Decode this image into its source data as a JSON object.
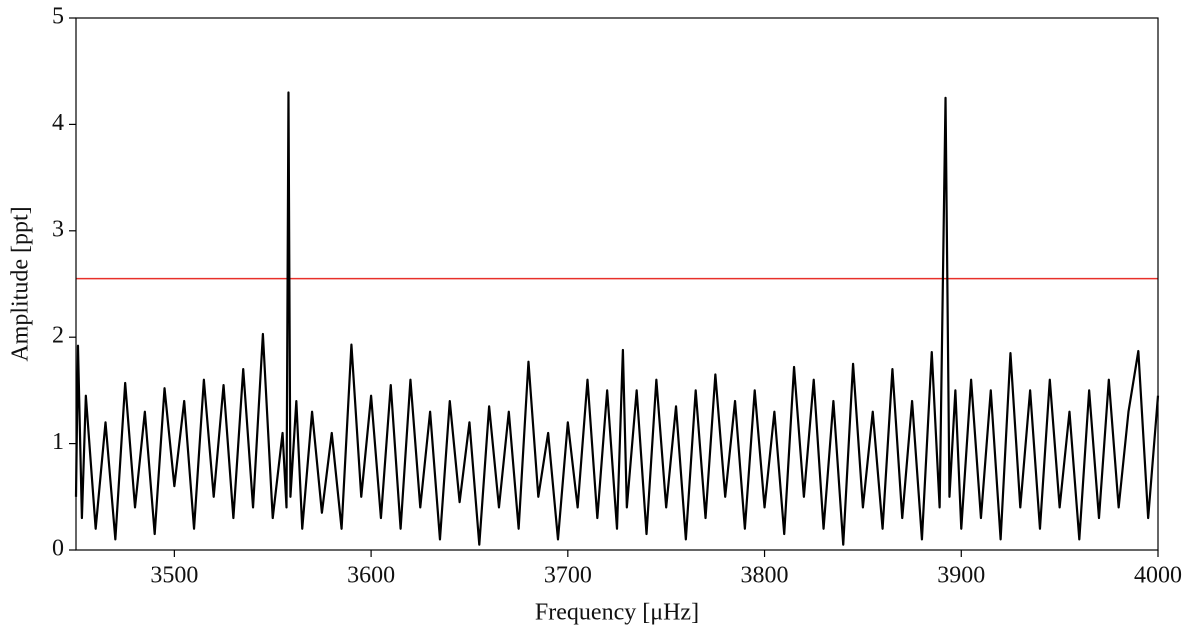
{
  "chart_data": {
    "type": "line",
    "xlabel": "Frequency [μHz]",
    "ylabel": "Amplitude [ppt]",
    "xlim": [
      3450,
      4000
    ],
    "xticks": [
      3500,
      3600,
      3700,
      3800,
      3900,
      4000
    ],
    "ylim": [
      0,
      5
    ],
    "yticks": [
      0,
      1,
      2,
      3,
      4,
      5
    ],
    "x": [
      3450,
      3451,
      3453,
      3455,
      3460,
      3465,
      3470,
      3475,
      3480,
      3485,
      3490,
      3495,
      3500,
      3505,
      3510,
      3515,
      3520,
      3525,
      3530,
      3535,
      3540,
      3545,
      3550,
      3555,
      3557,
      3558,
      3559,
      3562,
      3565,
      3570,
      3575,
      3580,
      3585,
      3590,
      3595,
      3600,
      3605,
      3610,
      3615,
      3620,
      3625,
      3630,
      3635,
      3640,
      3645,
      3650,
      3655,
      3660,
      3665,
      3670,
      3675,
      3680,
      3685,
      3690,
      3695,
      3700,
      3705,
      3710,
      3715,
      3720,
      3725,
      3728,
      3730,
      3735,
      3740,
      3745,
      3750,
      3755,
      3760,
      3765,
      3770,
      3775,
      3780,
      3785,
      3790,
      3795,
      3800,
      3805,
      3810,
      3815,
      3820,
      3825,
      3830,
      3835,
      3840,
      3845,
      3850,
      3855,
      3860,
      3865,
      3870,
      3875,
      3880,
      3885,
      3889,
      3892,
      3894,
      3897,
      3900,
      3905,
      3910,
      3915,
      3920,
      3925,
      3930,
      3935,
      3940,
      3945,
      3950,
      3955,
      3960,
      3965,
      3970,
      3975,
      3980,
      3985,
      3990,
      3995,
      4000
    ],
    "series": [
      {
        "color": "#000000",
        "values": [
          0.5,
          1.92,
          0.3,
          1.45,
          0.2,
          1.2,
          0.1,
          1.57,
          0.4,
          1.3,
          0.15,
          1.52,
          0.6,
          1.4,
          0.2,
          1.6,
          0.5,
          1.55,
          0.3,
          1.7,
          0.4,
          2.03,
          0.3,
          1.1,
          0.4,
          4.3,
          0.5,
          1.4,
          0.2,
          1.3,
          0.35,
          1.1,
          0.2,
          1.93,
          0.5,
          1.45,
          0.3,
          1.55,
          0.2,
          1.6,
          0.4,
          1.3,
          0.1,
          1.4,
          0.45,
          1.2,
          0.05,
          1.35,
          0.4,
          1.3,
          0.2,
          1.77,
          0.5,
          1.1,
          0.1,
          1.2,
          0.4,
          1.6,
          0.3,
          1.5,
          0.2,
          1.88,
          0.4,
          1.5,
          0.15,
          1.6,
          0.4,
          1.35,
          0.1,
          1.5,
          0.3,
          1.65,
          0.5,
          1.4,
          0.2,
          1.5,
          0.4,
          1.3,
          0.15,
          1.72,
          0.5,
          1.6,
          0.2,
          1.4,
          0.05,
          1.75,
          0.4,
          1.3,
          0.2,
          1.7,
          0.3,
          1.4,
          0.1,
          1.86,
          0.4,
          4.25,
          0.5,
          1.5,
          0.2,
          1.6,
          0.3,
          1.5,
          0.1,
          1.85,
          0.4,
          1.5,
          0.2,
          1.6,
          0.4,
          1.3,
          0.1,
          1.5,
          0.3,
          1.6,
          0.4,
          1.3,
          1.87,
          0.3,
          1.45
        ]
      }
    ],
    "hlines": [
      {
        "value": 2.55,
        "color": "#e8302a"
      }
    ]
  }
}
